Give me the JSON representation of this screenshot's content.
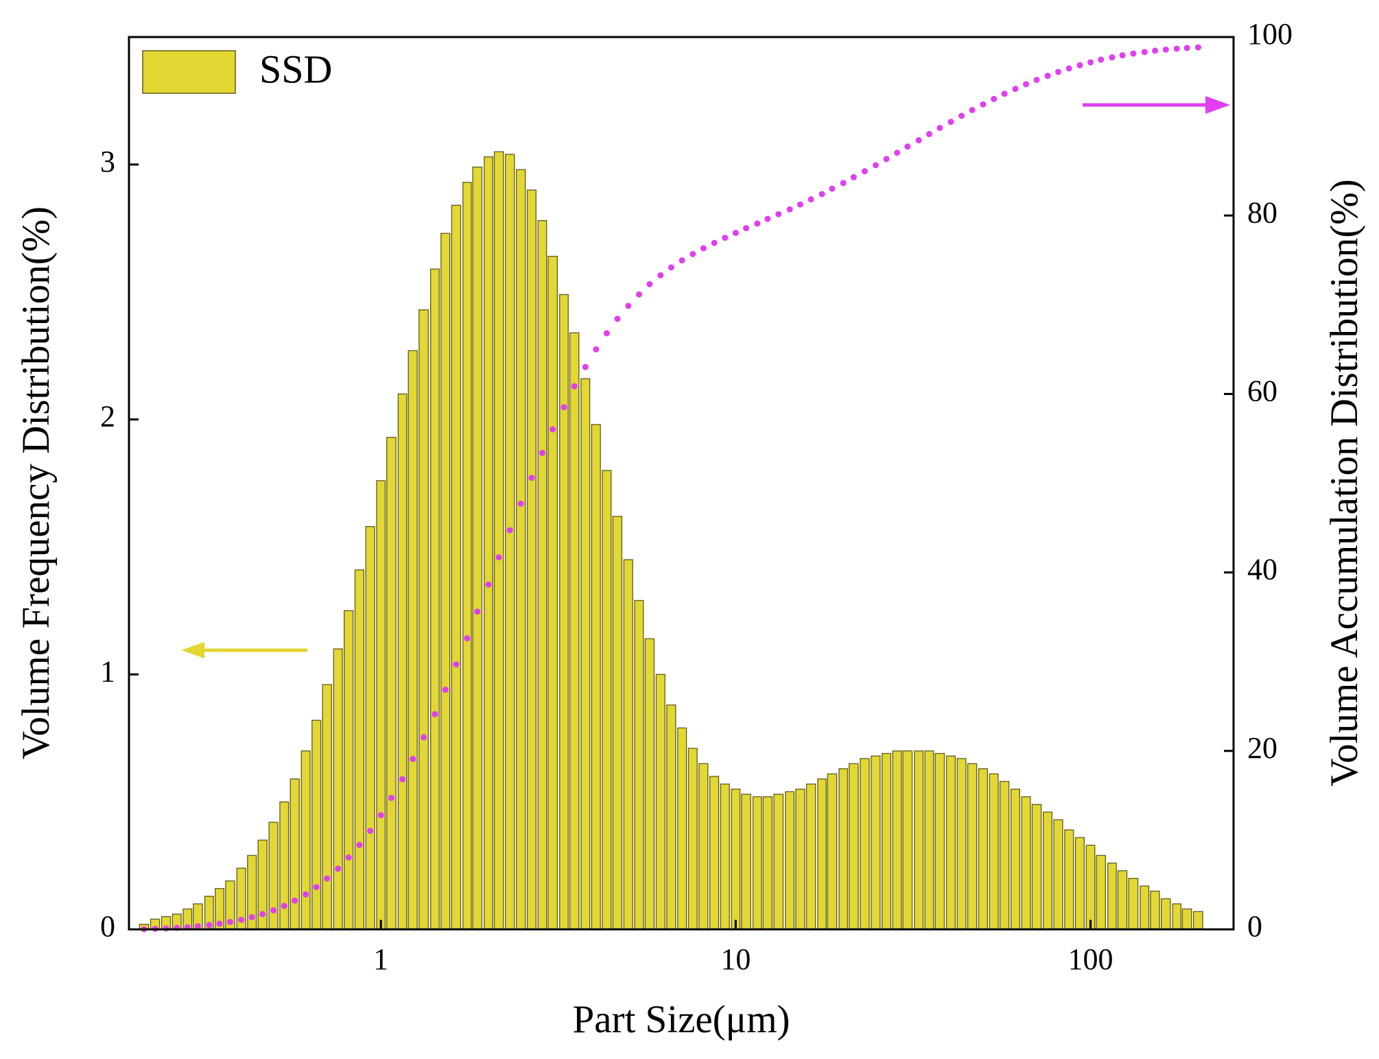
{
  "chart_data": {
    "type": "bar",
    "x_label": "Part Size(μm)",
    "y_label": "Volume Frequency Distribution(%)",
    "y2_label": "Volume Accumulation Distribution(%)",
    "xscale": "log",
    "xlim": [
      0.195,
      253
    ],
    "xticks": [
      1,
      10,
      100
    ],
    "ylim": [
      0,
      3.5
    ],
    "yticks": [
      0,
      1,
      2,
      3
    ],
    "y2lim": [
      0,
      100
    ],
    "y2ticks": [
      0,
      20,
      40,
      60,
      80,
      100
    ],
    "legend": "upper left",
    "x": [
      0.215,
      0.231,
      0.248,
      0.266,
      0.285,
      0.305,
      0.328,
      0.351,
      0.376,
      0.404,
      0.433,
      0.464,
      0.498,
      0.534,
      0.572,
      0.614,
      0.658,
      0.705,
      0.757,
      0.811,
      0.87,
      0.933,
      1,
      1.07,
      1.15,
      1.23,
      1.32,
      1.42,
      1.52,
      1.63,
      1.75,
      1.87,
      2.01,
      2.15,
      2.31,
      2.48,
      2.66,
      2.85,
      3.05,
      3.28,
      3.51,
      3.77,
      4.04,
      4.33,
      4.64,
      4.98,
      5.34,
      5.72,
      6.14,
      6.58,
      7.06,
      7.57,
      8.11,
      8.7,
      9.33,
      10,
      10.7,
      11.5,
      12.3,
      13.2,
      14.2,
      15.2,
      16.3,
      17.5,
      18.7,
      20.1,
      21.5,
      23.1,
      24.8,
      26.6,
      28.5,
      30.5,
      32.8,
      35.1,
      37.6,
      40.4,
      43.3,
      46.4,
      49.8,
      53.4,
      57.2,
      61.4,
      65.8,
      70.5,
      75.7,
      81.1,
      87,
      93.3,
      100,
      107,
      115,
      123,
      132,
      142,
      152,
      163,
      175,
      187,
      201
    ],
    "series": [
      {
        "name": "SSD",
        "type": "bar",
        "color": "#e3d733",
        "edge_color": "#5e5a1e",
        "values": [
          0.02,
          0.04,
          0.05,
          0.06,
          0.08,
          0.1,
          0.13,
          0.16,
          0.19,
          0.24,
          0.29,
          0.35,
          0.42,
          0.5,
          0.59,
          0.7,
          0.82,
          0.96,
          1.1,
          1.25,
          1.41,
          1.58,
          1.76,
          1.93,
          2.1,
          2.27,
          2.43,
          2.59,
          2.73,
          2.84,
          2.93,
          2.99,
          3.03,
          3.05,
          3.04,
          2.98,
          2.9,
          2.78,
          2.64,
          2.49,
          2.34,
          2.16,
          1.98,
          1.8,
          1.62,
          1.45,
          1.29,
          1.14,
          1.0,
          0.88,
          0.79,
          0.71,
          0.65,
          0.6,
          0.57,
          0.55,
          0.53,
          0.52,
          0.52,
          0.53,
          0.54,
          0.55,
          0.57,
          0.59,
          0.61,
          0.63,
          0.65,
          0.67,
          0.68,
          0.69,
          0.7,
          0.7,
          0.7,
          0.7,
          0.69,
          0.68,
          0.67,
          0.65,
          0.63,
          0.61,
          0.58,
          0.55,
          0.52,
          0.49,
          0.46,
          0.43,
          0.39,
          0.36,
          0.33,
          0.29,
          0.26,
          0.23,
          0.2,
          0.17,
          0.15,
          0.12,
          0.1,
          0.08,
          0.07
        ]
      },
      {
        "type": "line",
        "style": "dotted",
        "axis": "y2",
        "color": "#e03ef0",
        "values": [
          0.02,
          0.06,
          0.11,
          0.17,
          0.25,
          0.35,
          0.48,
          0.64,
          0.83,
          1.07,
          1.36,
          1.71,
          2.13,
          2.63,
          3.22,
          3.92,
          4.74,
          5.7,
          6.8,
          8.05,
          9.46,
          11.04,
          12.8,
          14.73,
          16.83,
          19.1,
          21.53,
          24.12,
          26.85,
          29.69,
          32.62,
          35.61,
          38.64,
          41.69,
          44.73,
          47.71,
          50.61,
          53.39,
          56.03,
          58.52,
          60.86,
          63.02,
          65.0,
          66.8,
          68.42,
          69.87,
          71.16,
          72.3,
          73.3,
          74.18,
          74.97,
          75.68,
          76.33,
          76.93,
          77.5,
          78.05,
          78.58,
          79.1,
          79.62,
          80.15,
          80.69,
          81.24,
          81.81,
          82.4,
          83.01,
          83.64,
          84.29,
          84.96,
          85.64,
          86.33,
          87.03,
          87.73,
          88.43,
          89.13,
          89.82,
          90.5,
          91.17,
          91.82,
          92.45,
          93.06,
          93.64,
          94.19,
          94.71,
          95.2,
          95.66,
          96.09,
          96.48,
          96.84,
          97.17,
          97.46,
          97.72,
          97.95,
          98.15,
          98.32,
          98.47,
          98.59,
          98.69,
          98.77,
          98.84
        ]
      }
    ]
  }
}
